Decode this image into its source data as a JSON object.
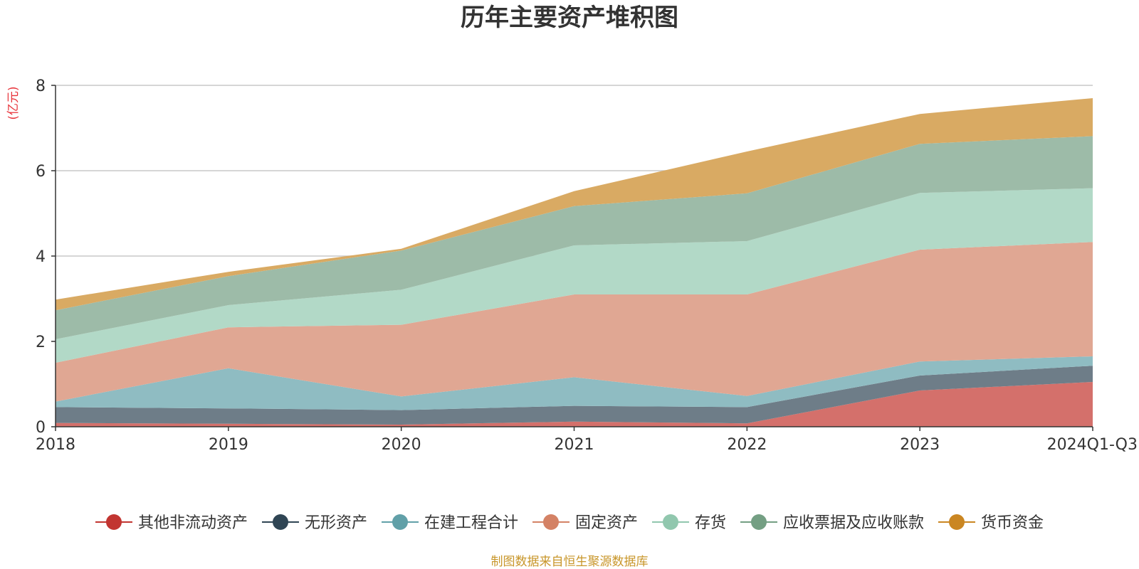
{
  "chart_data": {
    "type": "area",
    "stacked": true,
    "title": "历年主要资产堆积图",
    "ylabel": "(亿元)",
    "categories": [
      "2018",
      "2019",
      "2020",
      "2021",
      "2022",
      "2023",
      "2024Q1-Q3"
    ],
    "ylim": [
      0,
      8
    ],
    "yticks": [
      0,
      2,
      4,
      6,
      8
    ],
    "grid": true,
    "legend_position": "bottom",
    "series": [
      {
        "name": "其他非流动资产",
        "color": "#d4706b",
        "values": [
          0.09,
          0.07,
          0.05,
          0.12,
          0.08,
          0.85,
          1.05
        ]
      },
      {
        "name": "无形资产",
        "color": "#6e7d88",
        "values": [
          0.37,
          0.36,
          0.34,
          0.37,
          0.38,
          0.35,
          0.38
        ]
      },
      {
        "name": "在建工程合计",
        "color": "#8fbcc2",
        "values": [
          0.13,
          0.94,
          0.32,
          0.67,
          0.26,
          0.33,
          0.22
        ]
      },
      {
        "name": "固定资产",
        "color": "#e0a793",
        "values": [
          0.91,
          0.96,
          1.68,
          1.94,
          2.38,
          2.62,
          2.68
        ]
      },
      {
        "name": "存货",
        "color": "#b2d9c7",
        "values": [
          0.55,
          0.52,
          0.82,
          1.15,
          1.25,
          1.33,
          1.26
        ]
      },
      {
        "name": "应收票据及应收账款",
        "color": "#9dbba8",
        "values": [
          0.68,
          0.68,
          0.92,
          0.92,
          1.12,
          1.15,
          1.22
        ]
      },
      {
        "name": "货币资金",
        "color": "#d9aa63",
        "values": [
          0.25,
          0.1,
          0.04,
          0.35,
          0.98,
          0.7,
          0.89
        ]
      }
    ],
    "legend_marker_colors": [
      "#c23531",
      "#2f4554",
      "#61a0a8",
      "#d48265",
      "#91c7ae",
      "#749f83",
      "#ca8622"
    ]
  },
  "source_note": "制图数据来自恒生聚源数据库"
}
